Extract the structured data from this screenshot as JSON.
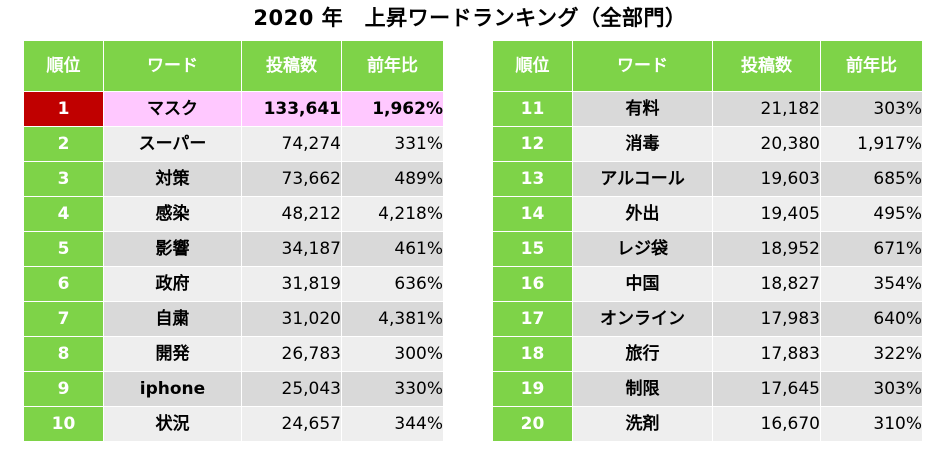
{
  "title": "2020 年　上昇ワードランキング（全部門）",
  "colors": {
    "header_green": "#7ed348",
    "top_rank_red": "#c00000",
    "top_row_pink": "#ffc8ff",
    "row_gray_dark": "#d9d9d9",
    "row_gray_light": "#eeeeee"
  },
  "chart_data": {
    "type": "table",
    "title": "2020 年　上昇ワードランキング（全部門）",
    "columns": [
      "順位",
      "ワード",
      "投稿数",
      "前年比"
    ],
    "rows": [
      {
        "rank": "1",
        "word": "マスク",
        "posts": "133,641",
        "yoy": "1,962%"
      },
      {
        "rank": "2",
        "word": "スーパー",
        "posts": "74,274",
        "yoy": "331%"
      },
      {
        "rank": "3",
        "word": "対策",
        "posts": "73,662",
        "yoy": "489%"
      },
      {
        "rank": "4",
        "word": "感染",
        "posts": "48,212",
        "yoy": "4,218%"
      },
      {
        "rank": "5",
        "word": "影響",
        "posts": "34,187",
        "yoy": "461%"
      },
      {
        "rank": "6",
        "word": "政府",
        "posts": "31,819",
        "yoy": "636%"
      },
      {
        "rank": "7",
        "word": "自粛",
        "posts": "31,020",
        "yoy": "4,381%"
      },
      {
        "rank": "8",
        "word": "開発",
        "posts": "26,783",
        "yoy": "300%"
      },
      {
        "rank": "9",
        "word": "iphone",
        "posts": "25,043",
        "yoy": "330%"
      },
      {
        "rank": "10",
        "word": "状況",
        "posts": "24,657",
        "yoy": "344%"
      },
      {
        "rank": "11",
        "word": "有料",
        "posts": "21,182",
        "yoy": "303%"
      },
      {
        "rank": "12",
        "word": "消毒",
        "posts": "20,380",
        "yoy": "1,917%"
      },
      {
        "rank": "13",
        "word": "アルコール",
        "posts": "19,603",
        "yoy": "685%"
      },
      {
        "rank": "14",
        "word": "外出",
        "posts": "19,405",
        "yoy": "495%"
      },
      {
        "rank": "15",
        "word": "レジ袋",
        "posts": "18,952",
        "yoy": "671%"
      },
      {
        "rank": "16",
        "word": "中国",
        "posts": "18,827",
        "yoy": "354%"
      },
      {
        "rank": "17",
        "word": "オンライン",
        "posts": "17,983",
        "yoy": "640%"
      },
      {
        "rank": "18",
        "word": "旅行",
        "posts": "17,883",
        "yoy": "322%"
      },
      {
        "rank": "19",
        "word": "制限",
        "posts": "17,645",
        "yoy": "303%"
      },
      {
        "rank": "20",
        "word": "洗剤",
        "posts": "16,670",
        "yoy": "310%"
      }
    ]
  }
}
